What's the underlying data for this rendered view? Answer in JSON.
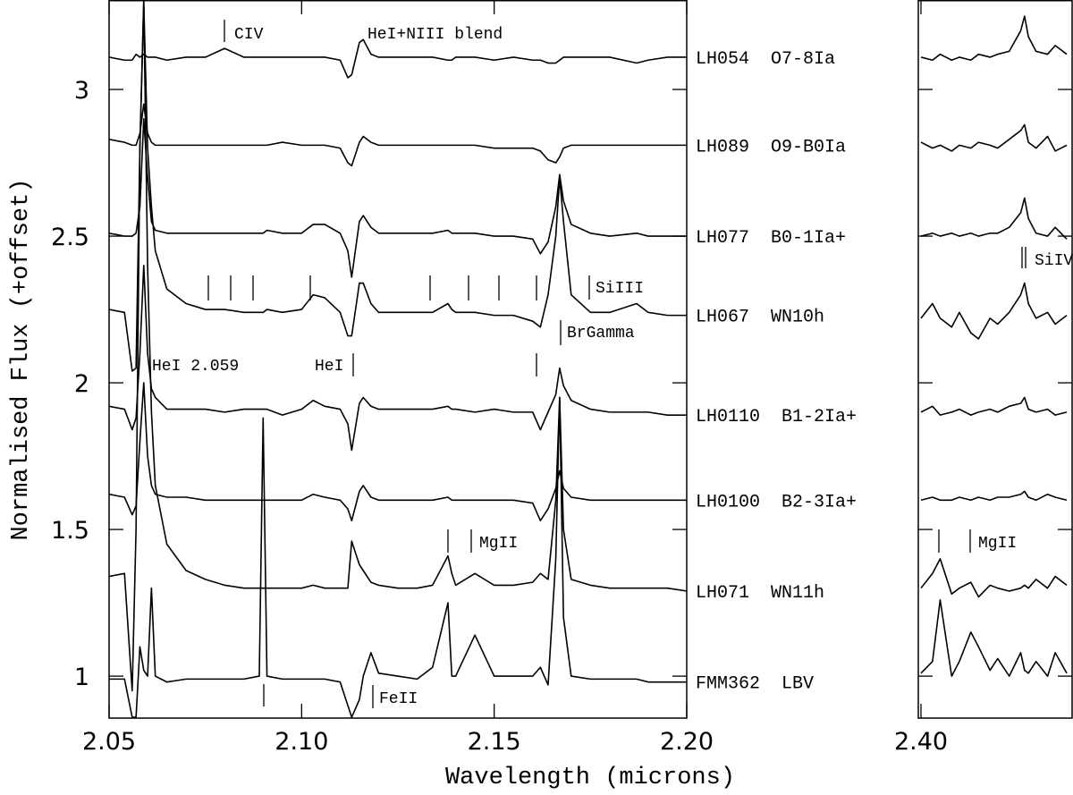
{
  "chart_data": [
    {
      "type": "line",
      "x_label": "Wavelength (microns)",
      "y_label": "Normalised Flux (+offset)",
      "xlim": [
        2.05,
        2.2
      ],
      "ylim": [
        0.857,
        3.305
      ],
      "xticks": [
        2.05,
        {
          "value": 2.1,
          "label": "2.10"
        },
        2.15,
        {
          "value": 2.2,
          "label": "2.20"
        }
      ],
      "yticks": [
        1,
        1.5,
        2,
        2.5,
        3
      ],
      "x": [
        2.05,
        2.054,
        2.056,
        2.057,
        2.058,
        2.059,
        2.06,
        2.061,
        2.062,
        2.065,
        2.07,
        2.075,
        2.08,
        2.085,
        2.089,
        2.09,
        2.091,
        2.095,
        2.1,
        2.103,
        2.106,
        2.11,
        2.112,
        2.113,
        2.115,
        2.116,
        2.118,
        2.12,
        2.125,
        2.13,
        2.134,
        2.138,
        2.139,
        2.14,
        2.145,
        2.15,
        2.155,
        2.16,
        2.162,
        2.164,
        2.166,
        2.167,
        2.168,
        2.17,
        2.175,
        2.18,
        2.187,
        2.19,
        2.195,
        2.2
      ],
      "series": [
        {
          "name": "LH054  O7-8Ia",
          "color": "#000000",
          "values": [
            3.11,
            3.1,
            3.1,
            3.12,
            3.11,
            3.12,
            3.11,
            3.11,
            3.11,
            3.1,
            3.11,
            3.11,
            3.14,
            3.11,
            3.11,
            3.11,
            3.11,
            3.11,
            3.11,
            3.11,
            3.11,
            3.1,
            3.04,
            3.05,
            3.16,
            3.17,
            3.12,
            3.11,
            3.11,
            3.11,
            3.11,
            3.1,
            3.1,
            3.11,
            3.11,
            3.1,
            3.11,
            3.1,
            3.1,
            3.09,
            3.09,
            3.1,
            3.11,
            3.11,
            3.11,
            3.11,
            3.09,
            3.1,
            3.11,
            3.11
          ]
        },
        {
          "name": "LH089  O9-B0Ia",
          "color": "#000000",
          "values": [
            2.83,
            2.82,
            2.81,
            2.81,
            2.85,
            2.95,
            2.85,
            2.82,
            2.81,
            2.81,
            2.81,
            2.81,
            2.81,
            2.81,
            2.81,
            2.81,
            2.81,
            2.82,
            2.81,
            2.81,
            2.81,
            2.8,
            2.75,
            2.74,
            2.82,
            2.84,
            2.82,
            2.81,
            2.81,
            2.81,
            2.81,
            2.81,
            2.81,
            2.81,
            2.81,
            2.8,
            2.8,
            2.8,
            2.79,
            2.76,
            2.75,
            2.77,
            2.8,
            2.81,
            2.81,
            2.81,
            2.81,
            2.81,
            2.81,
            2.81
          ]
        },
        {
          "name": "LH077  B0-1Ia+",
          "color": "#000000",
          "values": [
            2.51,
            2.5,
            2.5,
            2.51,
            2.6,
            2.9,
            2.7,
            2.55,
            2.52,
            2.51,
            2.51,
            2.51,
            2.51,
            2.51,
            2.51,
            2.51,
            2.52,
            2.51,
            2.51,
            2.54,
            2.54,
            2.51,
            2.45,
            2.36,
            2.55,
            2.57,
            2.53,
            2.51,
            2.51,
            2.51,
            2.51,
            2.52,
            2.51,
            2.51,
            2.51,
            2.5,
            2.5,
            2.49,
            2.44,
            2.48,
            2.6,
            2.71,
            2.62,
            2.54,
            2.51,
            2.5,
            2.51,
            2.5,
            2.5,
            2.5
          ]
        },
        {
          "name": "LH067  WN10h",
          "color": "#000000",
          "values": [
            2.25,
            2.24,
            2.04,
            2.05,
            2.8,
            3.3,
            2.8,
            2.6,
            2.45,
            2.32,
            2.27,
            2.25,
            2.25,
            2.24,
            2.24,
            2.24,
            2.25,
            2.24,
            2.25,
            2.3,
            2.29,
            2.24,
            2.16,
            2.16,
            2.34,
            2.34,
            2.27,
            2.24,
            2.24,
            2.24,
            2.24,
            2.27,
            2.25,
            2.24,
            2.24,
            2.23,
            2.23,
            2.21,
            2.19,
            2.3,
            2.5,
            2.7,
            2.55,
            2.3,
            2.24,
            2.24,
            2.27,
            2.24,
            2.23,
            2.23
          ]
        },
        {
          "name": "LH0110  B1-2Ia+",
          "color": "#000000",
          "values": [
            1.92,
            1.91,
            1.84,
            1.88,
            2.1,
            2.4,
            2.1,
            1.98,
            1.95,
            1.91,
            1.91,
            1.91,
            1.9,
            1.91,
            1.91,
            1.91,
            1.91,
            1.89,
            1.91,
            1.94,
            1.92,
            1.91,
            1.86,
            1.77,
            1.93,
            1.95,
            1.92,
            1.91,
            1.91,
            1.91,
            1.91,
            1.92,
            1.91,
            1.91,
            1.9,
            1.91,
            1.9,
            1.9,
            1.84,
            1.9,
            1.96,
            2.05,
            1.99,
            1.94,
            1.91,
            1.9,
            1.9,
            1.9,
            1.89,
            1.89
          ]
        },
        {
          "name": "LH0100  B2-3Ia+",
          "color": "#000000",
          "values": [
            1.62,
            1.61,
            1.55,
            1.58,
            1.8,
            2.0,
            1.75,
            1.65,
            1.62,
            1.61,
            1.61,
            1.6,
            1.6,
            1.6,
            1.6,
            1.6,
            1.6,
            1.6,
            1.6,
            1.62,
            1.61,
            1.6,
            1.57,
            1.53,
            1.63,
            1.65,
            1.61,
            1.6,
            1.6,
            1.6,
            1.6,
            1.61,
            1.6,
            1.6,
            1.6,
            1.6,
            1.6,
            1.59,
            1.53,
            1.57,
            1.64,
            1.7,
            1.64,
            1.61,
            1.6,
            1.6,
            1.6,
            1.6,
            1.6,
            1.6
          ]
        },
        {
          "name": "LH071  WN11h",
          "color": "#000000",
          "values": [
            1.34,
            1.35,
            0.95,
            1.5,
            2.8,
            3.3,
            2.4,
            1.9,
            1.65,
            1.45,
            1.36,
            1.33,
            1.31,
            1.3,
            1.3,
            1.3,
            1.3,
            1.3,
            1.3,
            1.31,
            1.3,
            1.3,
            1.3,
            1.46,
            1.38,
            1.36,
            1.32,
            1.31,
            1.3,
            1.3,
            1.31,
            1.41,
            1.35,
            1.31,
            1.35,
            1.31,
            1.31,
            1.32,
            1.35,
            1.33,
            1.6,
            1.95,
            1.5,
            1.33,
            1.31,
            1.3,
            1.3,
            1.3,
            1.3,
            1.29
          ]
        },
        {
          "name": "FMM362  LBV",
          "color": "#000000",
          "values": [
            0.99,
            0.99,
            0.86,
            0.86,
            1.1,
            1.02,
            1.0,
            1.3,
            1.0,
            0.98,
            0.99,
            0.99,
            0.99,
            0.99,
            1.0,
            1.88,
            1.0,
            0.99,
            0.99,
            0.99,
            0.99,
            0.98,
            0.9,
            0.86,
            0.92,
            1.0,
            1.08,
            1.01,
            1.0,
            0.99,
            1.03,
            1.25,
            1.0,
            1.0,
            1.14,
            1.0,
            1.0,
            1.0,
            1.03,
            0.97,
            1.4,
            1.95,
            1.2,
            1.0,
            0.99,
            0.99,
            0.99,
            0.98,
            0.98,
            0.98
          ]
        }
      ],
      "annotations": [
        "CIV",
        "HeI+NIII blend",
        "SiIII",
        "HeI 2.059",
        "HeI",
        "BrGamma",
        "MgII",
        "FeII"
      ]
    },
    {
      "type": "line",
      "xlim": [
        2.3993,
        2.4394
      ],
      "ylim": [
        0.857,
        3.305
      ],
      "xticks": [
        {
          "value": 2.4,
          "label": "2.40"
        }
      ],
      "x": [
        2.4,
        2.403,
        2.405,
        2.408,
        2.41,
        2.413,
        2.415,
        2.418,
        2.42,
        2.423,
        2.426,
        2.427,
        2.428,
        2.43,
        2.433,
        2.435,
        2.438
      ],
      "series": [
        {
          "color": "#000000",
          "values": [
            3.11,
            3.1,
            3.12,
            3.1,
            3.11,
            3.1,
            3.12,
            3.11,
            3.12,
            3.13,
            3.2,
            3.25,
            3.18,
            3.13,
            3.12,
            3.15,
            3.12
          ]
        },
        {
          "color": "#000000",
          "values": [
            2.82,
            2.8,
            2.81,
            2.79,
            2.81,
            2.8,
            2.82,
            2.81,
            2.8,
            2.83,
            2.86,
            2.88,
            2.82,
            2.8,
            2.84,
            2.79,
            2.81
          ]
        },
        {
          "color": "#000000",
          "values": [
            2.5,
            2.51,
            2.5,
            2.51,
            2.5,
            2.51,
            2.5,
            2.51,
            2.51,
            2.53,
            2.58,
            2.63,
            2.56,
            2.51,
            2.5,
            2.53,
            2.49
          ]
        },
        {
          "color": "#000000",
          "values": [
            2.22,
            2.27,
            2.22,
            2.19,
            2.24,
            2.17,
            2.15,
            2.22,
            2.2,
            2.24,
            2.3,
            2.34,
            2.27,
            2.22,
            2.24,
            2.2,
            2.23
          ]
        },
        {
          "color": "#000000",
          "values": [
            1.9,
            1.92,
            1.89,
            1.9,
            1.91,
            1.89,
            1.9,
            1.91,
            1.9,
            1.92,
            1.93,
            1.95,
            1.91,
            1.9,
            1.91,
            1.89,
            1.9
          ]
        },
        {
          "color": "#000000",
          "values": [
            1.6,
            1.61,
            1.6,
            1.6,
            1.61,
            1.6,
            1.61,
            1.6,
            1.61,
            1.61,
            1.62,
            1.63,
            1.61,
            1.6,
            1.62,
            1.61,
            1.6
          ]
        },
        {
          "color": "#000000",
          "values": [
            1.3,
            1.35,
            1.4,
            1.28,
            1.3,
            1.32,
            1.27,
            1.31,
            1.3,
            1.29,
            1.3,
            1.31,
            1.3,
            1.33,
            1.3,
            1.34,
            1.31
          ]
        },
        {
          "color": "#000000",
          "values": [
            1.01,
            1.05,
            1.26,
            1.0,
            1.05,
            1.15,
            1.1,
            1.02,
            1.06,
            1.0,
            1.08,
            1.02,
            1.01,
            1.05,
            1.0,
            1.08,
            1.01
          ]
        }
      ],
      "annotations": [
        "SiIV",
        "MgII"
      ]
    }
  ]
}
